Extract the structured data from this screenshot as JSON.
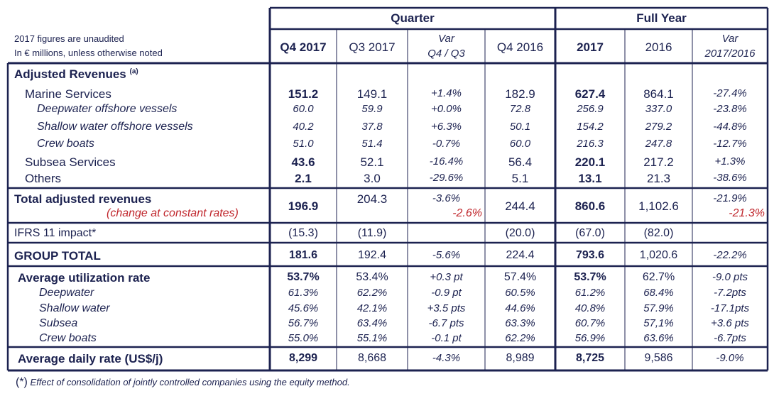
{
  "header": {
    "note_line1": "2017 figures are unaudited",
    "note_line2": "In € millions,  unless otherwise noted",
    "group_quarter": "Quarter",
    "group_full_year": "Full Year",
    "cols": [
      "Q4 2017",
      "Q3 2017",
      "Var",
      "Q4 / Q3",
      "Q4 2016",
      "2017",
      "2016",
      "Var",
      "2017/2016"
    ]
  },
  "rows": [
    {
      "label": "Adjusted Revenues",
      "sup": "(a)"
    },
    {
      "label": "Marine Services",
      "vals": [
        "151.2",
        "149.1",
        "+1.4%",
        "182.9",
        "627.4",
        "864.1",
        "-27.4%"
      ]
    },
    {
      "label": "Deepwater offshore vessels",
      "vals": [
        "60.0",
        "59.9",
        "+0.0%",
        "72.8",
        "256.9",
        "337.0",
        "-23.8%"
      ]
    },
    {
      "label": "Shallow water offshore vessels",
      "vals": [
        "40.2",
        "37.8",
        "+6.3%",
        "50.1",
        "154.2",
        "279.2",
        "-44.8%"
      ]
    },
    {
      "label": "Crew boats",
      "vals": [
        "51.0",
        "51.4",
        "-0.7%",
        "60.0",
        "216.3",
        "247.8",
        "-12.7%"
      ]
    },
    {
      "label": "Subsea Services",
      "vals": [
        "43.6",
        "52.1",
        "-16.4%",
        "56.4",
        "220.1",
        "217.2",
        "+1.3%"
      ]
    },
    {
      "label": "Others",
      "vals": [
        "2.1",
        "3.0",
        "-29.6%",
        "5.1",
        "13.1",
        "21.3",
        "-38.6%"
      ]
    },
    {
      "label": "Total adjusted revenues",
      "sublabel": "(change at constant rates)",
      "vals": [
        "196.9",
        "204.3",
        "-3.6%",
        "244.4",
        "860.6",
        "1,102.6",
        "-21.9%"
      ],
      "subvals": [
        "-2.6%",
        "-21.3%"
      ]
    },
    {
      "label": "IFRS 11 impact*",
      "vals": [
        "(15.3)",
        "(11.9)",
        "",
        "(20.0)",
        "(67.0)",
        "(82.0)",
        ""
      ]
    },
    {
      "label": "GROUP TOTAL",
      "vals": [
        "181.6",
        "192.4",
        "-5.6%",
        "224.4",
        "793.6",
        "1,020.6",
        "-22.2%"
      ]
    },
    {
      "label": "Average utilization rate",
      "vals": [
        "53.7%",
        "53.4%",
        "+0.3 pt",
        "57.4%",
        "53.7%",
        "62.7%",
        "-9.0 pts"
      ]
    },
    {
      "label": "Deepwater",
      "vals": [
        "61.3%",
        "62.2%",
        "-0.9 pt",
        "60.5%",
        "61.2%",
        "68.4%",
        "-7.2pts"
      ]
    },
    {
      "label": "Shallow water",
      "vals": [
        "45.6%",
        "42.1%",
        "+3.5 pts",
        "44.6%",
        "40.8%",
        "57.9%",
        "-17.1pts"
      ]
    },
    {
      "label": "Subsea",
      "vals": [
        "56.7%",
        "63.4%",
        "-6.7 pts",
        "63.3%",
        "60.7%",
        "57,1%",
        "+3.6 pts"
      ]
    },
    {
      "label": "Crew boats",
      "vals": [
        "55.0%",
        "55.1%",
        "-0.1 pt",
        "62.2%",
        "56.9%",
        "63.6%",
        "-6.7pts"
      ]
    },
    {
      "label": "Average daily rate (US$/j)",
      "vals": [
        "8,299",
        "8,668",
        "-4.3%",
        "8,989",
        "8,725",
        "9,586",
        "-9.0%"
      ]
    }
  ],
  "footnote": {
    "mark": "(*)",
    "text": "Effect of consolidation of jointly controlled companies using the equity method."
  },
  "colors": {
    "navy": "#1c2250",
    "red": "#c0272d"
  }
}
